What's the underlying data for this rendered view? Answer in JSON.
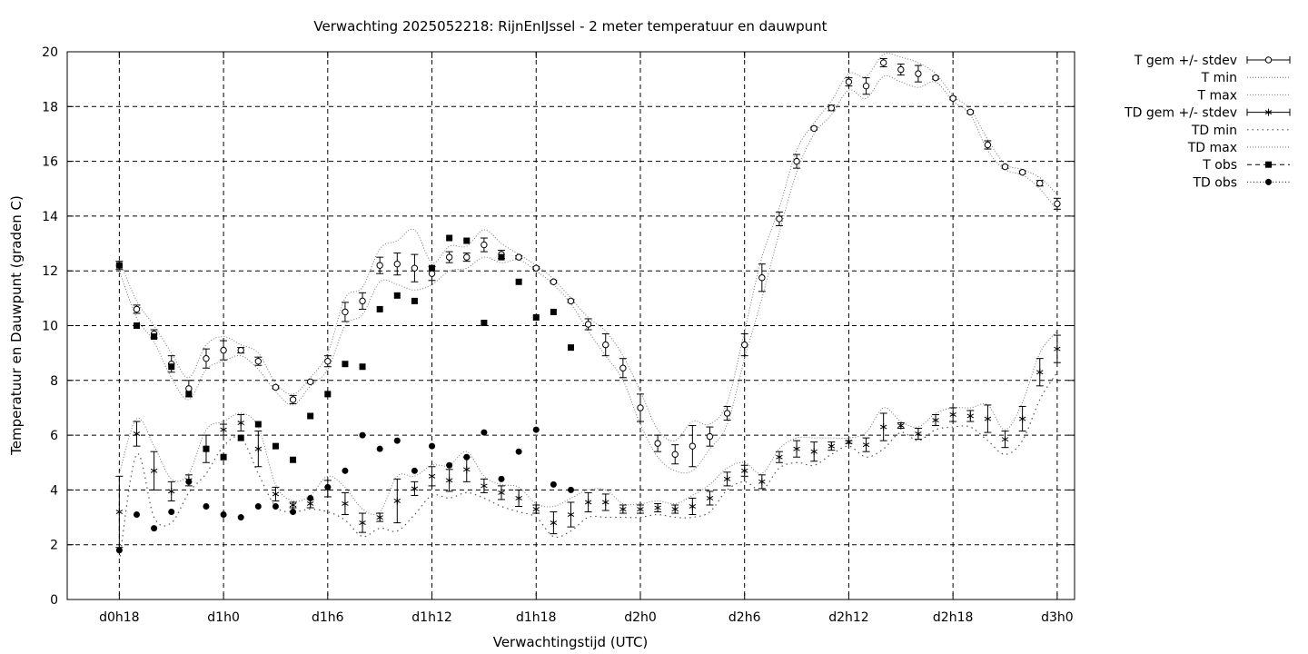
{
  "chart_data": {
    "type": "line",
    "title": "Verwachting 2025052218: RijnEnIJssel - 2 meter temperatuur en dauwpunt",
    "xlabel": "Verwachtingstijd (UTC)",
    "ylabel": "Temperatuur en Dauwpunt (graden C)",
    "x_unit": "hours since d0h0",
    "xlim": [
      15,
      73
    ],
    "ylim": [
      0,
      20
    ],
    "grid": true,
    "legend_position": "outside-top-right",
    "x_ticks": [
      {
        "x": 18,
        "label": "d0h18"
      },
      {
        "x": 24,
        "label": "d1h0"
      },
      {
        "x": 30,
        "label": "d1h6"
      },
      {
        "x": 36,
        "label": "d1h12"
      },
      {
        "x": 42,
        "label": "d1h18"
      },
      {
        "x": 48,
        "label": "d2h0"
      },
      {
        "x": 54,
        "label": "d2h6"
      },
      {
        "x": 60,
        "label": "d2h12"
      },
      {
        "x": 66,
        "label": "d2h18"
      },
      {
        "x": 72,
        "label": "d3h0"
      }
    ],
    "y_ticks": [
      0,
      2,
      4,
      6,
      8,
      10,
      12,
      14,
      16,
      18,
      20
    ],
    "legend": [
      {
        "key": "t_mean",
        "label": "T gem +/- stdev",
        "style": "errorbar-circle"
      },
      {
        "key": "t_min",
        "label": "T min",
        "style": "dotted"
      },
      {
        "key": "t_max",
        "label": "T max",
        "style": "dotted"
      },
      {
        "key": "td_mean",
        "label": "TD gem +/- stdev",
        "style": "errorbar-star"
      },
      {
        "key": "td_min",
        "label": "TD min",
        "style": "dotted-sparse"
      },
      {
        "key": "td_max",
        "label": "TD max",
        "style": "dotted"
      },
      {
        "key": "t_obs",
        "label": "T obs",
        "style": "square"
      },
      {
        "key": "td_obs",
        "label": "TD obs",
        "style": "dot"
      }
    ],
    "x": [
      18,
      19,
      20,
      21,
      22,
      23,
      24,
      25,
      26,
      27,
      28,
      29,
      30,
      31,
      32,
      33,
      34,
      35,
      36,
      37,
      38,
      39,
      40,
      41,
      42,
      43,
      44,
      45,
      46,
      47,
      48,
      49,
      50,
      51,
      52,
      53,
      54,
      55,
      56,
      57,
      58,
      59,
      60,
      61,
      62,
      63,
      64,
      65,
      66,
      67,
      68,
      69,
      70,
      71,
      72
    ],
    "t_mean": [
      12.2,
      10.6,
      9.7,
      8.6,
      7.7,
      8.8,
      9.1,
      9.1,
      8.7,
      7.75,
      7.3,
      7.95,
      8.7,
      10.5,
      10.9,
      12.2,
      12.25,
      12.1,
      11.9,
      12.5,
      12.5,
      12.95,
      12.6,
      12.5,
      12.1,
      11.6,
      10.9,
      10.05,
      9.3,
      8.45,
      7.0,
      5.7,
      5.3,
      5.6,
      5.95,
      6.8,
      9.3,
      11.75,
      13.9,
      16.0,
      17.2,
      17.95,
      18.9,
      18.75,
      19.6,
      19.35,
      19.2,
      19.05,
      18.3,
      17.8,
      16.6,
      15.8,
      15.6,
      15.2,
      14.45
    ],
    "t_sd": [
      0.15,
      0.15,
      0.15,
      0.3,
      0.3,
      0.35,
      0.35,
      0.1,
      0.15,
      0.05,
      0.15,
      0.05,
      0.2,
      0.35,
      0.3,
      0.3,
      0.4,
      0.5,
      0.25,
      0.2,
      0.15,
      0.25,
      0.15,
      0.05,
      0.05,
      0.05,
      0.05,
      0.2,
      0.4,
      0.35,
      0.5,
      0.3,
      0.35,
      0.75,
      0.35,
      0.25,
      0.4,
      0.5,
      0.25,
      0.25,
      0.05,
      0.1,
      0.15,
      0.3,
      0.15,
      0.2,
      0.3,
      0.05,
      0.05,
      0.05,
      0.15,
      0.05,
      0.05,
      0.1,
      0.2
    ],
    "t_min": [
      12.0,
      10.3,
      9.4,
      8.1,
      7.3,
      8.4,
      8.7,
      8.9,
      8.4,
      7.6,
      7.1,
      7.8,
      8.4,
      10.0,
      10.4,
      11.6,
      11.5,
      11.3,
      11.5,
      12.0,
      12.1,
      12.5,
      12.3,
      12.4,
      12.0,
      11.5,
      10.8,
      9.8,
      8.9,
      8.0,
      6.4,
      5.2,
      4.7,
      4.7,
      5.5,
      6.4,
      8.8,
      11.0,
      13.4,
      15.6,
      17.0,
      17.7,
      18.6,
      18.3,
      19.1,
      18.9,
      18.7,
      18.9,
      18.2,
      17.7,
      16.4,
      15.7,
      15.5,
      15.0,
      14.2
    ],
    "t_max": [
      12.4,
      10.9,
      10.0,
      9.0,
      8.1,
      9.3,
      9.6,
      9.3,
      9.0,
      7.9,
      7.5,
      8.1,
      9.0,
      11.0,
      11.4,
      12.8,
      13.1,
      13.5,
      12.3,
      12.9,
      12.9,
      13.5,
      13.0,
      12.6,
      12.2,
      11.7,
      11.0,
      10.3,
      9.8,
      8.9,
      7.6,
      6.2,
      5.8,
      6.5,
      6.4,
      7.2,
      9.8,
      12.5,
      14.3,
      16.4,
      17.4,
      18.2,
      19.2,
      19.1,
      19.9,
      19.8,
      19.6,
      19.2,
      18.4,
      17.9,
      16.8,
      15.9,
      15.7,
      15.4,
      14.8
    ],
    "td_mean": [
      3.2,
      6.05,
      4.7,
      3.95,
      4.35,
      5.5,
      6.2,
      6.45,
      5.5,
      3.85,
      3.45,
      3.5,
      4.05,
      3.5,
      2.8,
      3.0,
      3.6,
      4.05,
      4.5,
      4.35,
      4.75,
      4.15,
      3.9,
      3.7,
      3.3,
      2.8,
      3.1,
      3.55,
      3.55,
      3.3,
      3.3,
      3.35,
      3.3,
      3.4,
      3.7,
      4.4,
      4.7,
      4.3,
      5.2,
      5.5,
      5.4,
      5.6,
      5.75,
      5.65,
      6.3,
      6.35,
      6.05,
      6.55,
      6.75,
      6.7,
      6.6,
      5.85,
      6.6,
      8.3,
      9.15
    ],
    "td_sd": [
      1.3,
      0.45,
      0.7,
      0.35,
      0.2,
      0.5,
      0.2,
      0.3,
      0.65,
      0.25,
      0.1,
      0.15,
      0.3,
      0.4,
      0.35,
      0.15,
      0.8,
      0.25,
      0.35,
      0.4,
      0.45,
      0.25,
      0.25,
      0.3,
      0.15,
      0.4,
      0.45,
      0.35,
      0.3,
      0.15,
      0.15,
      0.15,
      0.15,
      0.3,
      0.25,
      0.25,
      0.2,
      0.25,
      0.2,
      0.3,
      0.35,
      0.15,
      0.05,
      0.25,
      0.5,
      0.1,
      0.2,
      0.2,
      0.25,
      0.2,
      0.5,
      0.3,
      0.45,
      0.5,
      0.5
    ],
    "td_min": [
      1.4,
      5.3,
      3.0,
      2.8,
      3.9,
      4.6,
      5.6,
      5.9,
      4.6,
      3.4,
      3.2,
      3.3,
      3.2,
      2.9,
      2.3,
      2.6,
      2.5,
      3.1,
      3.8,
      3.7,
      3.9,
      3.7,
      3.4,
      3.2,
      3.0,
      2.3,
      2.5,
      3.0,
      3.0,
      3.0,
      3.0,
      3.1,
      3.0,
      3.0,
      3.2,
      4.0,
      4.3,
      4.0,
      4.8,
      5.0,
      4.9,
      5.3,
      5.6,
      5.2,
      5.5,
      6.1,
      5.8,
      6.2,
      6.3,
      6.3,
      5.8,
      5.3,
      5.8,
      7.3,
      8.3
    ],
    "td_max": [
      4.6,
      6.6,
      5.6,
      4.4,
      4.6,
      6.2,
      6.5,
      6.8,
      6.3,
      4.2,
      3.6,
      3.8,
      4.5,
      4.1,
      3.3,
      3.2,
      4.5,
      4.5,
      4.9,
      4.9,
      5.4,
      4.5,
      4.2,
      4.1,
      3.5,
      3.4,
      3.7,
      4.0,
      4.0,
      3.5,
      3.5,
      3.6,
      3.5,
      3.8,
      4.2,
      4.8,
      5.0,
      4.6,
      5.5,
      5.9,
      5.9,
      5.9,
      5.9,
      6.1,
      7.0,
      6.5,
      6.3,
      6.8,
      7.0,
      7.0,
      7.1,
      6.2,
      7.2,
      9.0,
      9.8
    ],
    "t_obs_x": [
      18,
      19,
      20,
      21,
      22,
      23,
      24,
      25,
      26,
      27,
      28,
      29,
      30,
      31,
      32,
      33,
      34,
      35,
      36,
      37,
      38,
      39,
      40,
      41,
      42,
      43,
      44
    ],
    "t_obs": [
      12.2,
      10.0,
      9.6,
      8.5,
      7.5,
      5.5,
      5.2,
      5.9,
      6.4,
      5.6,
      5.1,
      6.7,
      7.5,
      8.6,
      8.5,
      10.6,
      11.1,
      10.9,
      12.1,
      13.2,
      13.1,
      10.1,
      12.5,
      11.6,
      10.3,
      10.5,
      9.2
    ],
    "td_obs_x": [
      18,
      19,
      20,
      21,
      22,
      23,
      24,
      25,
      26,
      27,
      28,
      29,
      30,
      31,
      32,
      33,
      34,
      35,
      36,
      37,
      38,
      39,
      40,
      41,
      42,
      43,
      44
    ],
    "td_obs": [
      1.8,
      3.1,
      2.6,
      3.2,
      4.3,
      3.4,
      3.1,
      3.0,
      3.4,
      3.4,
      3.2,
      3.7,
      4.1,
      4.7,
      6.0,
      5.5,
      5.8,
      4.7,
      5.6,
      4.9,
      5.2,
      6.1,
      4.4,
      5.4,
      6.2,
      4.2,
      4.0
    ]
  }
}
